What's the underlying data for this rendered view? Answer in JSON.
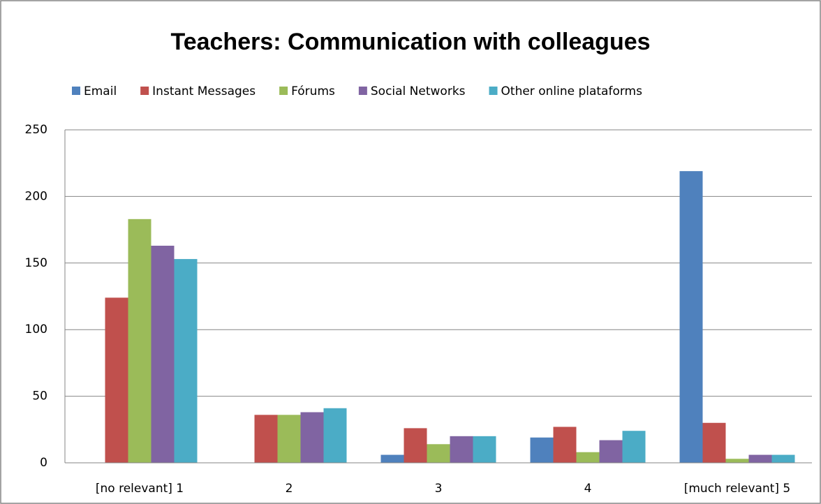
{
  "chart_data": {
    "type": "bar",
    "title": "Teachers: Communication with colleagues",
    "categories": [
      "[no relevant] 1",
      "2",
      "3",
      "4",
      "[much relevant] 5"
    ],
    "series": [
      {
        "name": "Email",
        "color": "#4f81bd",
        "values": [
          0,
          0,
          6,
          19,
          219
        ]
      },
      {
        "name": "Instant Messages",
        "color": "#c0504d",
        "values": [
          124,
          36,
          26,
          27,
          30
        ]
      },
      {
        "name": "Fórums",
        "color": "#9bbb59",
        "values": [
          183,
          36,
          14,
          8,
          3
        ]
      },
      {
        "name": "Social Networks",
        "color": "#8064a2",
        "values": [
          163,
          38,
          20,
          17,
          6
        ]
      },
      {
        "name": "Other online plataforms",
        "color": "#4bacc6",
        "values": [
          153,
          41,
          20,
          24,
          6
        ]
      }
    ],
    "ylim": [
      0,
      250
    ],
    "yticks": [
      0,
      50,
      100,
      150,
      200,
      250
    ],
    "grid": true,
    "legend": "top"
  }
}
